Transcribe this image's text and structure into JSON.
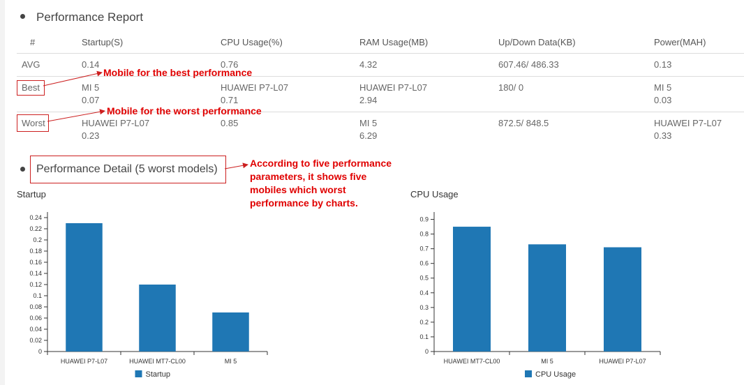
{
  "report": {
    "title": "Performance Report",
    "columns": [
      "#",
      "Startup(S)",
      "CPU Usage(%)",
      "RAM Usage(MB)",
      "Up/Down Data(KB)",
      "Power(MAH)"
    ],
    "rows": [
      {
        "label": "AVG",
        "cells": [
          [
            "0.14"
          ],
          [
            "0.76"
          ],
          [
            "4.32"
          ],
          [
            "607.46/ 486.33"
          ],
          [
            "0.13"
          ]
        ]
      },
      {
        "label": "Best",
        "cells": [
          [
            "MI 5",
            "0.07"
          ],
          [
            "HUAWEI P7-L07",
            "0.71"
          ],
          [
            "HUAWEI P7-L07",
            "2.94"
          ],
          [
            "180/ 0"
          ],
          [
            "MI 5",
            "0.03"
          ]
        ]
      },
      {
        "label": "Worst",
        "cells": [
          [
            "HUAWEI P7-L07",
            "0.23"
          ],
          [
            "0.85"
          ],
          [
            "MI 5",
            "6.29"
          ],
          [
            "872.5/ 848.5"
          ],
          [
            "HUAWEI P7-L07",
            "0.33"
          ]
        ]
      }
    ]
  },
  "annotations": {
    "best": "Mobile for the best performance",
    "worst": "Mobile for the worst performance",
    "detail_lines": [
      "According to five performance",
      "parameters, it shows five",
      "mobiles which worst",
      "performance by charts."
    ]
  },
  "detail": {
    "title": "Performance Detail (5 worst models)"
  },
  "colors": {
    "bar": "#1f77b4",
    "annotation": "#e00000",
    "annotation_box": "#cc1f1f",
    "axis": "#333333"
  },
  "chart_data": [
    {
      "type": "bar",
      "title": "Startup",
      "categories": [
        "HUAWEI P7-L07",
        "HUAWEI MT7-CL00",
        "MI 5"
      ],
      "series": [
        {
          "name": "Startup",
          "values": [
            0.23,
            0.12,
            0.07
          ]
        }
      ],
      "ylim": [
        0,
        0.25
      ],
      "yticks": [
        "0",
        "0.02",
        "0.04",
        "0.06",
        "0.08",
        "0.1",
        "0.12",
        "0.14",
        "0.16",
        "0.18",
        "0.2",
        "0.22",
        "0.24"
      ],
      "legend": "bottom"
    },
    {
      "type": "bar",
      "title": "CPU Usage",
      "categories": [
        "HUAWEI MT7-CL00",
        "MI 5",
        "HUAWEI P7-L07"
      ],
      "series": [
        {
          "name": "CPU Usage",
          "values": [
            0.85,
            0.73,
            0.71
          ]
        }
      ],
      "ylim": [
        0,
        0.95
      ],
      "yticks": [
        "0",
        "0.1",
        "0.2",
        "0.3",
        "0.4",
        "0.5",
        "0.6",
        "0.7",
        "0.8",
        "0.9"
      ],
      "legend": "bottom"
    }
  ]
}
